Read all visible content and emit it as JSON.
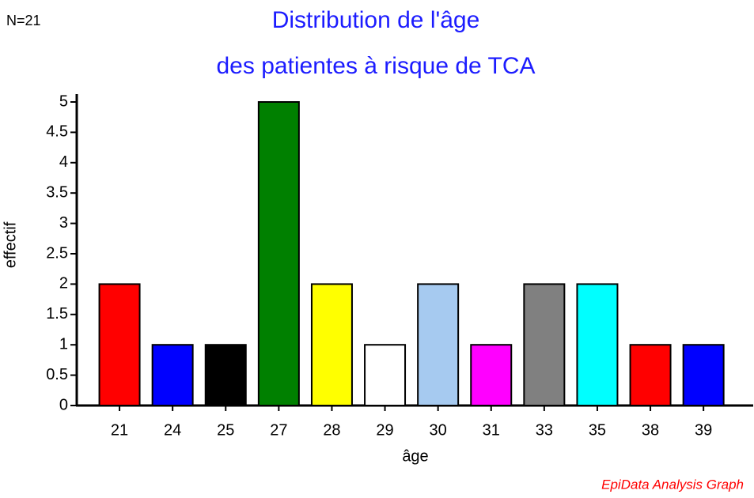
{
  "chart_data": {
    "type": "bar",
    "title_lines": [
      "Distribution de l'âge",
      "des patientes à risque de TCA"
    ],
    "annotation": "N=21",
    "footer": "EpiData Analysis Graph",
    "x_label": "âge",
    "y_label": "effectif",
    "categories": [
      "21",
      "24",
      "25",
      "27",
      "28",
      "29",
      "30",
      "31",
      "33",
      "35",
      "38",
      "39"
    ],
    "values": [
      2,
      1,
      1,
      5,
      2,
      1,
      2,
      1,
      2,
      2,
      1,
      1
    ],
    "colors": [
      "#ff0000",
      "#0000ff",
      "#000000",
      "#008000",
      "#ffff00",
      "#ffffff",
      "#a6caf0",
      "#ff00ff",
      "#808080",
      "#00ffff",
      "#ff0000",
      "#0000ff"
    ],
    "ylim": [
      0,
      5
    ],
    "yticks": [
      0,
      0.5,
      1,
      1.5,
      2,
      2.5,
      3,
      3.5,
      4,
      4.5,
      5
    ]
  }
}
